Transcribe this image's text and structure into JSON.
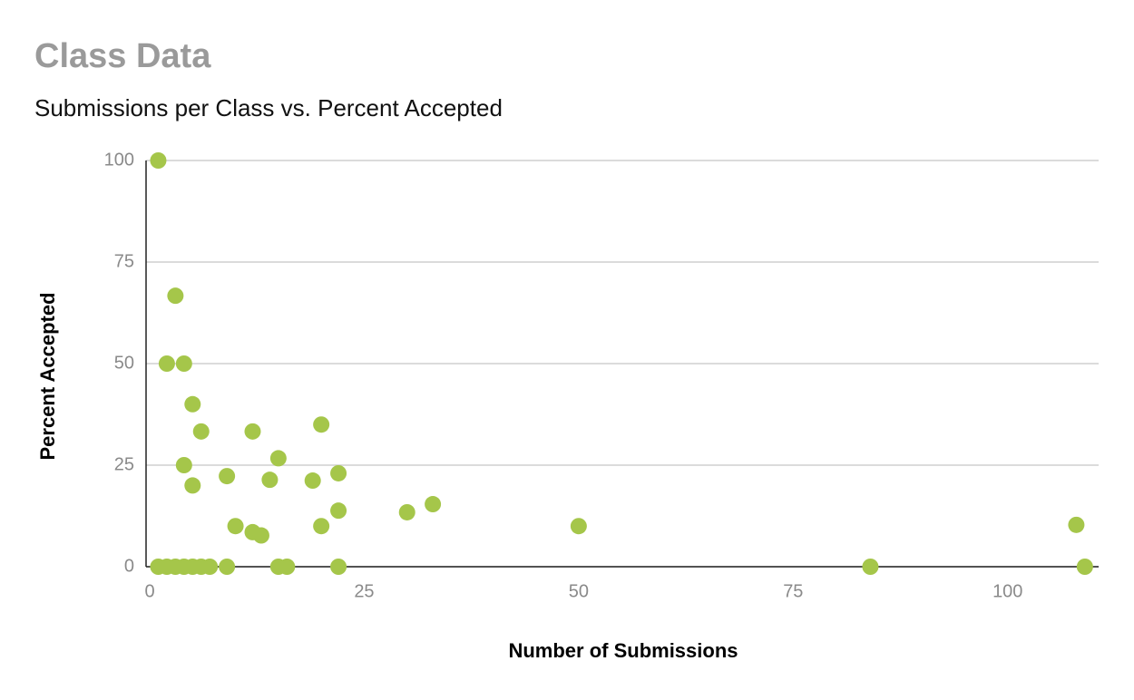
{
  "chart_data": {
    "type": "scatter",
    "title": "Class Data",
    "subtitle": "Submissions per Class vs. Percent Accepted",
    "x_label": "Number of Submissions",
    "y_label": "Percent Accepted",
    "x": [
      1,
      3,
      2,
      4,
      5,
      6,
      4,
      5,
      9,
      10,
      12,
      12,
      13,
      14,
      15,
      19,
      20,
      20,
      22,
      22,
      30,
      33,
      50,
      108,
      1,
      2,
      3,
      4,
      5,
      6,
      7,
      9,
      15,
      16,
      22,
      84,
      109
    ],
    "values": [
      100,
      66.7,
      50,
      50,
      40,
      33.3,
      25,
      20,
      22.3,
      10,
      33.3,
      8.5,
      7.7,
      21.4,
      26.7,
      21.2,
      35,
      10,
      23,
      13.8,
      13.4,
      15.4,
      10,
      10.3,
      0,
      0,
      0,
      0,
      0,
      0,
      0,
      0,
      0,
      0,
      0,
      0,
      0
    ],
    "color": "#a5c64a",
    "xlim": [
      0,
      110.6
    ],
    "xticks": [
      0,
      25,
      50,
      75,
      100
    ],
    "ylim": [
      0,
      100
    ],
    "yticks": [
      0,
      25,
      50,
      75,
      100
    ],
    "grid": true
  }
}
